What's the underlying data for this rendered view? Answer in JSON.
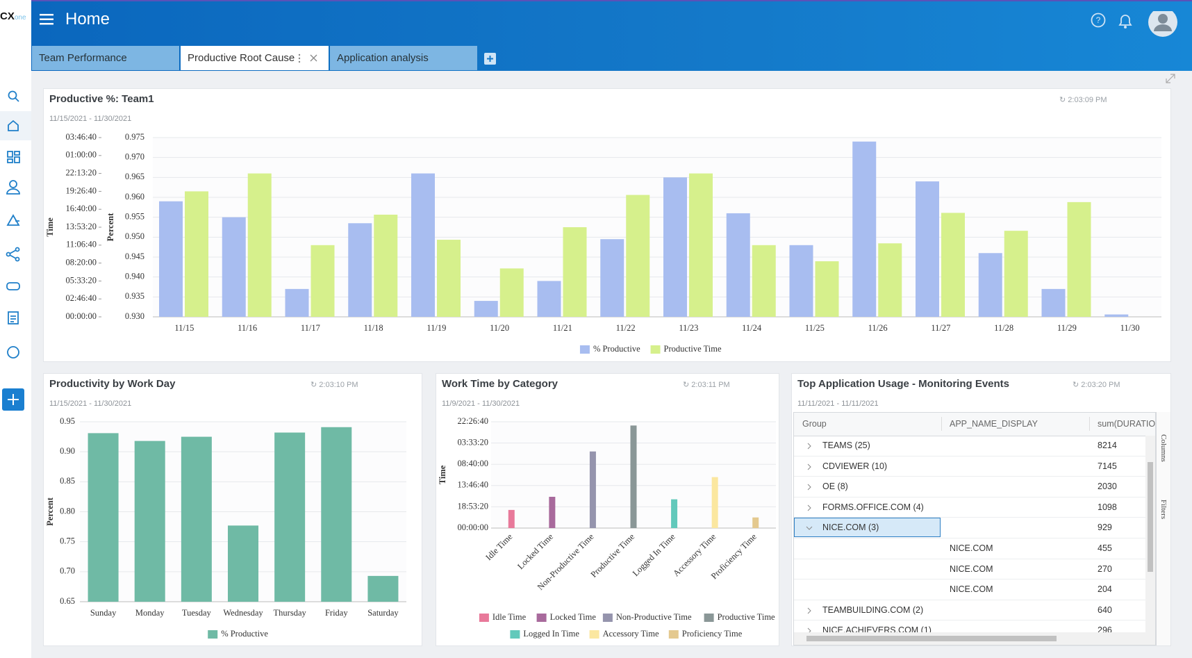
{
  "header": {
    "logo": "CX",
    "logo_suffix": "one",
    "title": "Home"
  },
  "tabs": [
    {
      "label": "Team Performance"
    },
    {
      "label": "Productive Root Cause",
      "active": true
    },
    {
      "label": "Application analysis"
    }
  ],
  "chart_data": [
    {
      "type": "bar",
      "title": "Productive %: Team1",
      "date_range": "11/15/2021 - 11/30/2021",
      "refreshed": "2:03:09 PM",
      "ylabel": "Percent",
      "y2label": "Time",
      "categories": [
        "11/15",
        "11/16",
        "11/17",
        "11/18",
        "11/19",
        "11/20",
        "11/21",
        "11/22",
        "11/23",
        "11/24",
        "11/25",
        "11/26",
        "11/27",
        "11/28",
        "11/29",
        "11/30"
      ],
      "series": [
        {
          "name": "% Productive",
          "color": "#a8bdf0",
          "values": [
            0.959,
            0.955,
            0.937,
            0.9535,
            0.966,
            0.934,
            0.939,
            0.9495,
            0.965,
            0.956,
            0.948,
            0.974,
            0.964,
            0.946,
            0.937,
            0.9306
          ]
        },
        {
          "name": "Productive Time",
          "color": "#d6f08c",
          "axis": "y2",
          "values": [
            70000,
            80000,
            40000,
            57000,
            43000,
            27000,
            50000,
            68000,
            80000,
            40000,
            31000,
            41000,
            58000,
            48000,
            64000,
            null
          ]
        }
      ],
      "ylim": [
        0.93,
        0.975
      ],
      "yticks": [
        {
          "value": 0.93,
          "label": "0.930"
        },
        0.935,
        {
          "value": 0.94,
          "label": "0.940"
        },
        0.945,
        {
          "value": 0.95,
          "label": "0.950"
        },
        0.955,
        {
          "value": 0.96,
          "label": "0.960"
        },
        0.965,
        {
          "value": 0.97,
          "label": "0.970"
        },
        0.975
      ],
      "y2lim": [
        0,
        100000
      ],
      "y2ticks": [
        {
          "value": 0,
          "label": "00:00:00"
        },
        {
          "value": 10000,
          "label": "02:46:40"
        },
        {
          "value": 20000,
          "label": "05:33:20"
        },
        {
          "value": 30000,
          "label": "08:20:00"
        },
        {
          "value": 40000,
          "label": "11:06:40"
        },
        {
          "value": 50000,
          "label": "13:53:20"
        },
        {
          "value": 60000,
          "label": "16:40:00"
        },
        {
          "value": 70000,
          "label": "19:26:40"
        },
        {
          "value": 80000,
          "label": "22:13:20"
        },
        {
          "value": 90000,
          "label": "01:00:00"
        },
        {
          "value": 100000,
          "label": "03:46:40"
        }
      ],
      "grid": true,
      "legend": "bottom"
    },
    {
      "type": "bar",
      "title": "Productivity by Work Day",
      "date_range": "11/15/2021 - 11/30/2021",
      "refreshed": "2:03:10 PM",
      "ylabel": "Percent",
      "categories": [
        "Sunday",
        "Monday",
        "Tuesday",
        "Wednesday",
        "Thursday",
        "Friday",
        "Saturday"
      ],
      "series": [
        {
          "name": "% Productive",
          "color": "#6fbaa5",
          "values": [
            0.931,
            0.918,
            0.925,
            0.777,
            0.932,
            0.941,
            0.693
          ]
        }
      ],
      "ylim": [
        0.65,
        0.95
      ],
      "yticks": [
        0.65,
        {
          "value": 0.7,
          "label": "0.70"
        },
        0.75,
        {
          "value": 0.8,
          "label": "0.80"
        },
        0.85,
        {
          "value": 0.9,
          "label": "0.90"
        },
        0.95
      ],
      "grid": true,
      "legend": "bottom"
    },
    {
      "type": "bar",
      "title": "Work Time by Category",
      "date_range": "11/9/2021 - 11/30/2021",
      "refreshed": "2:03:11 PM",
      "ylabel": "Time",
      "categories": [
        "Idle Time",
        "Locked Time",
        "Non-Productive Time",
        "Productive Time",
        "Logged In Time",
        "Accessory Time",
        "Proficiency Time"
      ],
      "values": [
        58000,
        100000,
        245000,
        328000,
        92000,
        163000,
        34000
      ],
      "colors": [
        "#e8799a",
        "#a86a9c",
        "#9594ad",
        "#8a9797",
        "#62c9bb",
        "#fbe7a0",
        "#e4c98f"
      ],
      "ylim": [
        0,
        340000
      ],
      "yticks": [
        {
          "value": 0,
          "label": "00:00:00"
        },
        {
          "value": 68000,
          "label": "18:53:20"
        },
        {
          "value": 136000,
          "label": "13:46:40"
        },
        {
          "value": 204000,
          "label": "08:40:00"
        },
        {
          "value": 272000,
          "label": "03:33:20"
        },
        {
          "value": 340000,
          "label": "22:26:40"
        }
      ],
      "grid": true,
      "legend": "bottom"
    }
  ],
  "table_panel": {
    "title": "Top Application Usage - Monitoring Events",
    "date_range": "11/11/2021 - 11/11/2021",
    "refreshed": "2:03:20 PM",
    "columns": [
      "Group",
      "APP_NAME_DISPLAY",
      "sum(DURATIO"
    ],
    "rows": [
      {
        "group": "TEAMS (25)",
        "value": 8214
      },
      {
        "group": "CDVIEWER (10)",
        "value": 7145
      },
      {
        "group": "OE (8)",
        "value": 2030
      },
      {
        "group": "FORMS.OFFICE.COM (4)",
        "value": 1098
      },
      {
        "group": "NICE.COM (3)",
        "value": 929,
        "expanded": true,
        "selected": true
      },
      {
        "app": "NICE.COM",
        "value": 455
      },
      {
        "app": "NICE.COM",
        "value": 270
      },
      {
        "app": "NICE.COM",
        "value": 204
      },
      {
        "group": "TEAMBUILDING.COM (2)",
        "value": 640
      },
      {
        "group": "NICE.ACHIEVERS.COM (1)",
        "value": 296
      }
    ],
    "side_tabs": [
      "Columns",
      "Filters"
    ]
  }
}
